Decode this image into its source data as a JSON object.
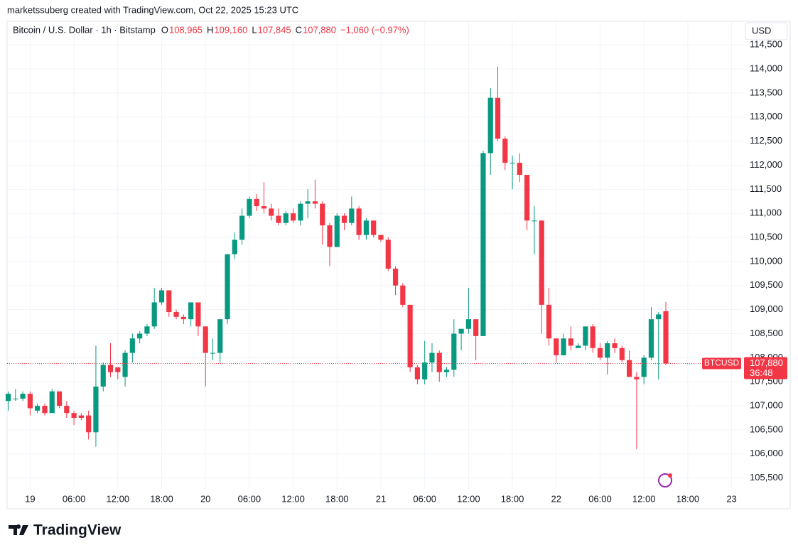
{
  "chart_data": {
    "type": "candlestick",
    "caption": "marketssuberg created with TradingView.com, Oct 22, 2025 15:23 UTC",
    "symbol": "Bitcoin / U.S. Dollar · 1h · Bitstamp",
    "ohlc_labels": [
      {
        "key": "O",
        "text": "108,965"
      },
      {
        "key": "H",
        "text": "109,160"
      },
      {
        "key": "L",
        "text": "107,845"
      },
      {
        "key": "C",
        "text": "107,880"
      }
    ],
    "change": "−1,060 (−0.97%)",
    "currency": "USD",
    "ticker": "BTCUSD",
    "last_label": "107,880",
    "countdown": "36:48",
    "brand": "TradingView",
    "up_color": "#089981",
    "down_color": "#f23645",
    "open": [
      107100,
      107150,
      107150,
      107250,
      106900,
      107000,
      106850,
      107300,
      107000,
      106850,
      106800,
      106800,
      106450,
      107400,
      107850,
      107800,
      107600,
      108100,
      108400,
      108500,
      108650,
      109150,
      109400,
      108950,
      108850,
      108800,
      109150,
      108650,
      108100,
      108100,
      108800,
      110150,
      110450,
      110950,
      111300,
      111150,
      111100,
      110950,
      110800,
      111000,
      110850,
      111200,
      111250,
      111200,
      110750,
      110300,
      110950,
      110800,
      111100,
      110550,
      110850,
      110550,
      110450,
      109850,
      109500,
      109100,
      107800,
      107550,
      107900,
      108100,
      107700,
      107750,
      108500,
      108600,
      108800,
      108450,
      112250,
      113400,
      112550,
      112050,
      112050,
      111800,
      110850,
      110850,
      109100,
      108400,
      108050,
      108400,
      108200,
      108250,
      108650,
      108200,
      108000,
      108300,
      108200,
      107950,
      107600,
      107600,
      108000,
      108800,
      108965
    ],
    "high": [
      107300,
      107350,
      107300,
      107300,
      107050,
      107050,
      107350,
      107300,
      107100,
      106900,
      106850,
      106900,
      108250,
      107900,
      108300,
      107800,
      108150,
      108500,
      108550,
      108700,
      109450,
      109450,
      109400,
      109000,
      108900,
      109150,
      109150,
      108650,
      108400,
      108800,
      110150,
      110600,
      111100,
      111350,
      111400,
      111650,
      111200,
      111100,
      111050,
      111100,
      111250,
      111500,
      111700,
      111250,
      110800,
      111000,
      111000,
      111350,
      111150,
      110900,
      110850,
      110550,
      110500,
      109900,
      109550,
      109100,
      107850,
      108350,
      108300,
      108150,
      107800,
      108800,
      108600,
      109450,
      108800,
      112300,
      113600,
      114050,
      112600,
      112200,
      112250,
      111800,
      111150,
      110850,
      109450,
      108400,
      108500,
      108650,
      108300,
      108650,
      108700,
      108300,
      108350,
      108400,
      108250,
      108150,
      107700,
      108050,
      109050,
      108950,
      109160
    ],
    "low": [
      106900,
      107100,
      107100,
      106800,
      106850,
      106800,
      106850,
      106950,
      106750,
      106600,
      106700,
      106300,
      106150,
      107300,
      107600,
      107550,
      107400,
      107900,
      108300,
      108450,
      108600,
      109100,
      108850,
      108800,
      108700,
      108650,
      108450,
      107400,
      107950,
      107900,
      108700,
      110050,
      110350,
      110900,
      111050,
      111000,
      110850,
      110750,
      110750,
      110800,
      110750,
      110900,
      111100,
      110350,
      109900,
      110300,
      110650,
      110750,
      110450,
      110450,
      110500,
      110400,
      109800,
      109300,
      109050,
      107700,
      107450,
      107450,
      107700,
      107500,
      107600,
      107600,
      108150,
      108500,
      107950,
      108450,
      111800,
      112500,
      111900,
      111500,
      111650,
      110650,
      110150,
      108500,
      108250,
      107900,
      108050,
      108150,
      108200,
      108150,
      108100,
      107950,
      107650,
      108100,
      107900,
      107600,
      106100,
      107450,
      107950,
      107550,
      107845
    ],
    "close": [
      107250,
      107150,
      107250,
      106950,
      107000,
      106850,
      107300,
      107000,
      106850,
      106750,
      106750,
      106450,
      107400,
      107850,
      107700,
      107700,
      108100,
      108400,
      108500,
      108650,
      109150,
      109400,
      108950,
      108850,
      108800,
      109150,
      108650,
      108100,
      108100,
      108800,
      110150,
      110450,
      110950,
      111300,
      111150,
      111100,
      110950,
      110800,
      111000,
      110850,
      111200,
      111250,
      111200,
      110750,
      110300,
      110950,
      110800,
      111100,
      110550,
      110850,
      110550,
      110450,
      109850,
      109500,
      109100,
      107800,
      107550,
      107900,
      108100,
      107700,
      107750,
      108500,
      108600,
      108800,
      108450,
      112250,
      113400,
      112550,
      112050,
      112050,
      111800,
      110850,
      110850,
      109100,
      108400,
      108050,
      108400,
      108250,
      108250,
      108650,
      108200,
      108000,
      108300,
      108200,
      107950,
      107600,
      107550,
      108000,
      108800,
      108900,
      107880
    ],
    "xlim": [
      -0.15,
      100.5
    ],
    "xticks": [
      {
        "value": 3,
        "label": "19"
      },
      {
        "value": 9,
        "label": "06:00"
      },
      {
        "value": 15,
        "label": "12:00"
      },
      {
        "value": 21,
        "label": "18:00"
      },
      {
        "value": 27,
        "label": "20"
      },
      {
        "value": 33,
        "label": "06:00"
      },
      {
        "value": 39,
        "label": "12:00"
      },
      {
        "value": 45,
        "label": "18:00"
      },
      {
        "value": 51,
        "label": "21"
      },
      {
        "value": 57,
        "label": "06:00"
      },
      {
        "value": 63,
        "label": "12:00"
      },
      {
        "value": 69,
        "label": "18:00"
      },
      {
        "value": 75,
        "label": "22"
      },
      {
        "value": 81,
        "label": "06:00"
      },
      {
        "value": 87,
        "label": "12:00"
      },
      {
        "value": 93,
        "label": "18:00"
      },
      {
        "value": 99,
        "label": "23"
      }
    ],
    "ylim": [
      104860,
      114990
    ],
    "yticks": [
      {
        "value": 105500,
        "label": "105,500"
      },
      {
        "value": 106000,
        "label": "106,000"
      },
      {
        "value": 106500,
        "label": "106,500"
      },
      {
        "value": 107000,
        "label": "107,000"
      },
      {
        "value": 107500,
        "label": "107,500"
      },
      {
        "value": 108000,
        "label": "108,000"
      },
      {
        "value": 108500,
        "label": "108,500"
      },
      {
        "value": 109000,
        "label": "109,000"
      },
      {
        "value": 109500,
        "label": "109,500"
      },
      {
        "value": 110000,
        "label": "110,000"
      },
      {
        "value": 110500,
        "label": "110,500"
      },
      {
        "value": 111000,
        "label": "111,000"
      },
      {
        "value": 111500,
        "label": "111,500"
      },
      {
        "value": 112000,
        "label": "112,000"
      },
      {
        "value": 112500,
        "label": "112,500"
      },
      {
        "value": 113000,
        "label": "113,000"
      },
      {
        "value": 113500,
        "label": "113,500"
      },
      {
        "value": 114000,
        "label": "114,000"
      },
      {
        "value": 114500,
        "label": "114,500"
      }
    ],
    "grid": true
  }
}
